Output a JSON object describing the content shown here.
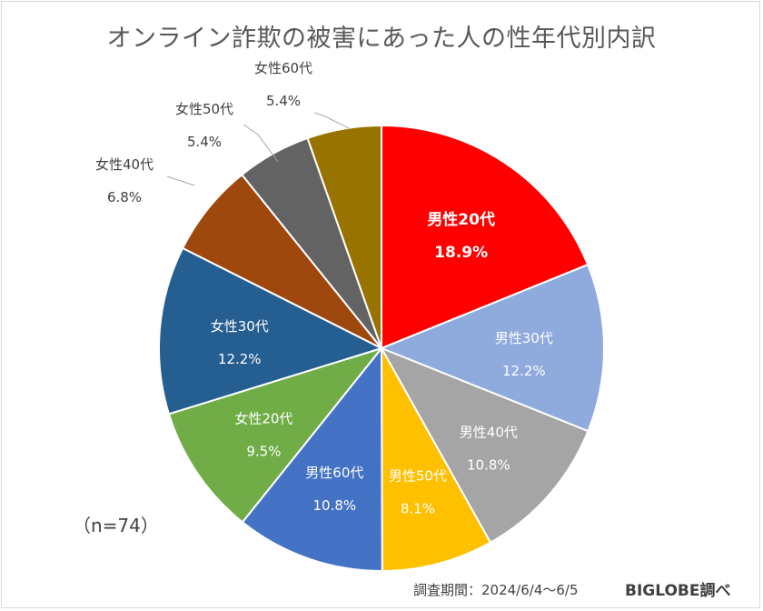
{
  "chart_data": {
    "type": "pie",
    "title": "オンライン詐欺の被害にあった人の性年代別内訳",
    "slices": [
      {
        "label": "男性20代",
        "value": 18.9,
        "display": "18.9%",
        "color": "#ff0000",
        "text_color": "#ffffff",
        "bold": true,
        "label_pos": "inside"
      },
      {
        "label": "男性30代",
        "value": 12.2,
        "display": "12.2%",
        "color": "#8faadc",
        "text_color": "#ffffff",
        "bold": false,
        "label_pos": "inside"
      },
      {
        "label": "男性40代",
        "value": 10.8,
        "display": "10.8%",
        "color": "#a5a5a5",
        "text_color": "#ffffff",
        "bold": false,
        "label_pos": "inside"
      },
      {
        "label": "男性50代",
        "value": 8.1,
        "display": "8.1%",
        "color": "#ffc000",
        "text_color": "#ffffff",
        "bold": false,
        "label_pos": "inside"
      },
      {
        "label": "男性60代",
        "value": 10.8,
        "display": "10.8%",
        "color": "#4472c4",
        "text_color": "#ffffff",
        "bold": false,
        "label_pos": "inside"
      },
      {
        "label": "女性20代",
        "value": 9.5,
        "display": "9.5%",
        "color": "#70ad47",
        "text_color": "#ffffff",
        "bold": false,
        "label_pos": "inside"
      },
      {
        "label": "女性30代",
        "value": 12.2,
        "display": "12.2%",
        "color": "#255e91",
        "text_color": "#ffffff",
        "bold": false,
        "label_pos": "inside"
      },
      {
        "label": "女性40代",
        "value": 6.8,
        "display": "6.8%",
        "color": "#9e480e",
        "text_color": "#404040",
        "bold": false,
        "label_pos": "outside"
      },
      {
        "label": "女性50代",
        "value": 5.4,
        "display": "5.4%",
        "color": "#636363",
        "text_color": "#404040",
        "bold": false,
        "label_pos": "outside"
      },
      {
        "label": "女性60代",
        "value": 5.4,
        "display": "5.4%",
        "color": "#997300",
        "text_color": "#404040",
        "bold": false,
        "label_pos": "outside"
      }
    ],
    "start_angle": "12 o'clock",
    "direction": "clockwise",
    "legend": "none"
  },
  "notes": {
    "sample": "（n=74）",
    "source": "調査期間：2024/6/4～6/5",
    "brand": "BIGLOBE調べ"
  }
}
